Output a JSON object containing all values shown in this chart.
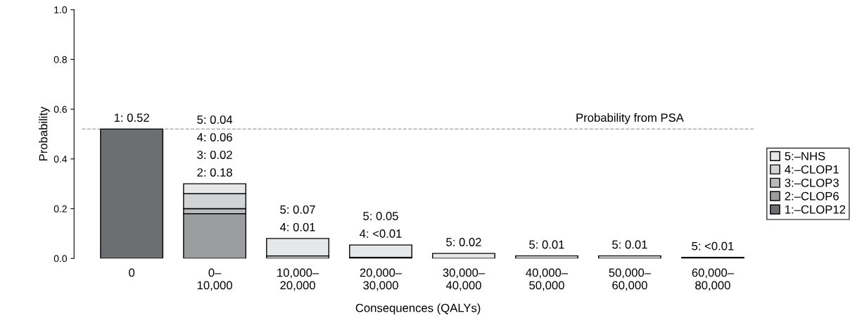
{
  "chart_data": {
    "type": "bar",
    "stacked": true,
    "xlabel": "Consequences (QALYs)",
    "ylabel": "Probability",
    "categories": [
      "0",
      "0–\n10,000",
      "10,000–\n20,000",
      "20,000–\n30,000",
      "30,000–\n40,000",
      "40,000–\n50,000",
      "50,000–\n60,000",
      "60,000–\n80,000"
    ],
    "series": [
      {
        "name": "1:–CLOP12",
        "color": "#6d6e71",
        "values": [
          0.52,
          null,
          null,
          null,
          null,
          null,
          null,
          null
        ],
        "value_labels": [
          "1: 0.52",
          null,
          null,
          null,
          null,
          null,
          null,
          null
        ]
      },
      {
        "name": "2:–CLOP6",
        "color": "#9c9d9f",
        "values": [
          null,
          0.18,
          null,
          null,
          null,
          null,
          null,
          null
        ]
      },
      {
        "name": "3:–CLOP3",
        "color": "#b9babc",
        "values": [
          null,
          0.02,
          null,
          null,
          null,
          null,
          null,
          null
        ]
      },
      {
        "name": "4:–CLOP1",
        "color": "#d2d3d5",
        "values": [
          null,
          0.06,
          0.01,
          0.004,
          null,
          null,
          null,
          null
        ],
        "value_labels": [
          null,
          null,
          "4: 0.01",
          "4: <0.01",
          null,
          null,
          null,
          null
        ]
      },
      {
        "name": "5:–NHS",
        "color": "#e6e7e8",
        "values": [
          null,
          0.04,
          0.07,
          0.05,
          0.02,
          0.01,
          0.01,
          0.004
        ],
        "value_labels": [
          null,
          null,
          "5: 0.07",
          "5: 0.05",
          "5: 0.02",
          "5: 0.01",
          "5: 0.01",
          "5: <0.01"
        ]
      }
    ],
    "annotations": [
      "2: 0.18",
      "3: 0.02",
      "4: 0.06",
      "5: 0.04"
    ],
    "ylim": [
      0,
      1.0
    ],
    "yticks": [
      {
        "value": 0,
        "label": "0.0"
      },
      0.2,
      0.4,
      0.6,
      0.8,
      {
        "value": 1.0,
        "label": "1.0"
      }
    ],
    "ref_lines": [
      {
        "axis": "y",
        "value": 0.52,
        "label": "Probability from PSA",
        "color": "#a0a0a0",
        "line_style": "dashed"
      }
    ],
    "grid": false,
    "legend": "right"
  }
}
